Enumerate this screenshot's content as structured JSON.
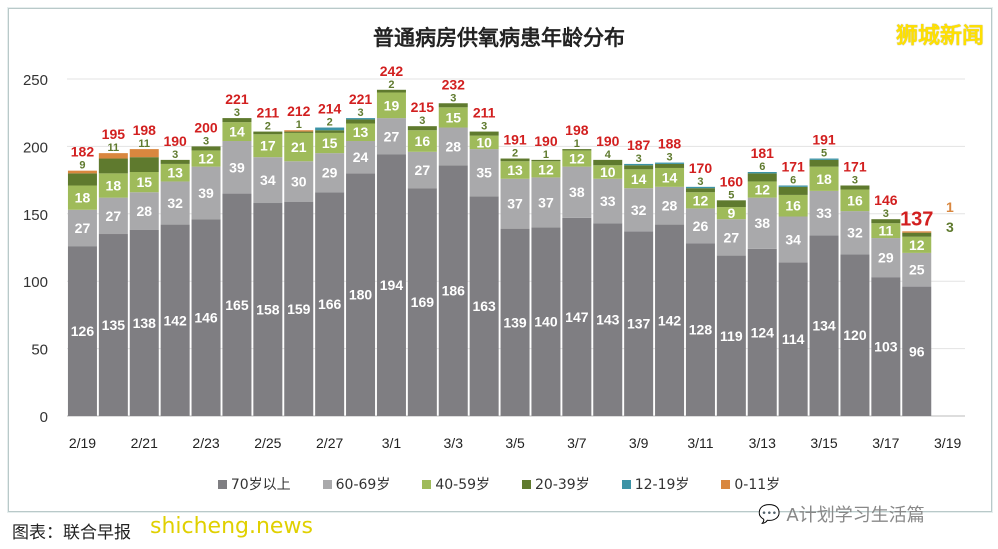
{
  "title": "普通病房供氧病患年龄分布",
  "watermark": "狮城新闻",
  "credit": "图表：联合早报",
  "credit_watermark": "shicheng.news",
  "wechat_account": "A计划学习生活篇",
  "chart_data": {
    "type": "bar",
    "stacked": true,
    "categories": [
      "2/19",
      "2/20",
      "2/21",
      "2/22",
      "2/23",
      "2/24",
      "2/25",
      "2/26",
      "2/27",
      "2/28",
      "3/1",
      "3/2",
      "3/3",
      "3/4",
      "3/5",
      "3/6",
      "3/7",
      "3/8",
      "3/9",
      "3/10",
      "3/11",
      "3/12",
      "3/13",
      "3/14",
      "3/15",
      "3/16",
      "3/17",
      "3/18",
      "3/19"
    ],
    "x_tick_labels": [
      "2/19",
      "2/21",
      "2/23",
      "2/25",
      "2/27",
      "3/1",
      "3/3",
      "3/5",
      "3/7",
      "3/9",
      "3/11",
      "3/13",
      "3/15",
      "3/17",
      "3/19"
    ],
    "y_ticks": [
      0,
      50,
      100,
      150,
      200,
      250
    ],
    "ylim": [
      0,
      250
    ],
    "grid": true,
    "legend_position": "bottom",
    "series": [
      {
        "name": "70岁以上",
        "color": "#7f7e82",
        "values": [
          126,
          135,
          138,
          142,
          146,
          165,
          158,
          159,
          166,
          180,
          194,
          169,
          186,
          163,
          139,
          140,
          147,
          143,
          137,
          142,
          128,
          119,
          124,
          114,
          134,
          120,
          103,
          96,
          null
        ]
      },
      {
        "name": "60-69岁",
        "color": "#a9a9ab",
        "values": [
          27,
          27,
          28,
          32,
          39,
          39,
          34,
          30,
          29,
          24,
          27,
          27,
          28,
          35,
          37,
          37,
          38,
          33,
          32,
          28,
          26,
          27,
          38,
          34,
          33,
          32,
          29,
          25,
          null
        ]
      },
      {
        "name": "40-59岁",
        "color": "#9fbb5a",
        "values": [
          18,
          18,
          15,
          13,
          12,
          14,
          17,
          21,
          15,
          13,
          19,
          16,
          15,
          10,
          13,
          12,
          12,
          10,
          14,
          14,
          12,
          9,
          12,
          16,
          18,
          16,
          11,
          12,
          null
        ]
      },
      {
        "name": "20-39岁",
        "color": "#5f7a2e",
        "values": [
          9,
          11,
          11,
          3,
          3,
          3,
          2,
          1,
          2,
          3,
          2,
          3,
          3,
          3,
          2,
          1,
          1,
          4,
          3,
          3,
          3,
          5,
          6,
          6,
          5,
          3,
          3,
          3,
          null
        ]
      },
      {
        "name": "12-19岁",
        "color": "#3c93a6",
        "values": [
          0,
          0,
          0,
          0,
          0,
          0,
          0,
          0,
          2,
          1,
          0,
          0,
          0,
          0,
          0,
          0,
          0,
          0,
          1,
          1,
          1,
          0,
          1,
          1,
          1,
          0,
          0,
          0,
          null
        ]
      },
      {
        "name": "0-11岁",
        "color": "#d9873f",
        "values": [
          2,
          4,
          6,
          0,
          0,
          0,
          0,
          1,
          0,
          0,
          0,
          0,
          0,
          0,
          0,
          0,
          0,
          0,
          0,
          0,
          0,
          0,
          0,
          0,
          0,
          0,
          0,
          1,
          null
        ]
      }
    ],
    "totals": [
      182,
      195,
      198,
      190,
      200,
      221,
      211,
      212,
      214,
      221,
      242,
      215,
      232,
      211,
      191,
      190,
      198,
      190,
      187,
      188,
      170,
      160,
      181,
      171,
      191,
      171,
      146,
      137,
      null
    ],
    "latest_extra_labels": [
      "1",
      "3"
    ]
  }
}
